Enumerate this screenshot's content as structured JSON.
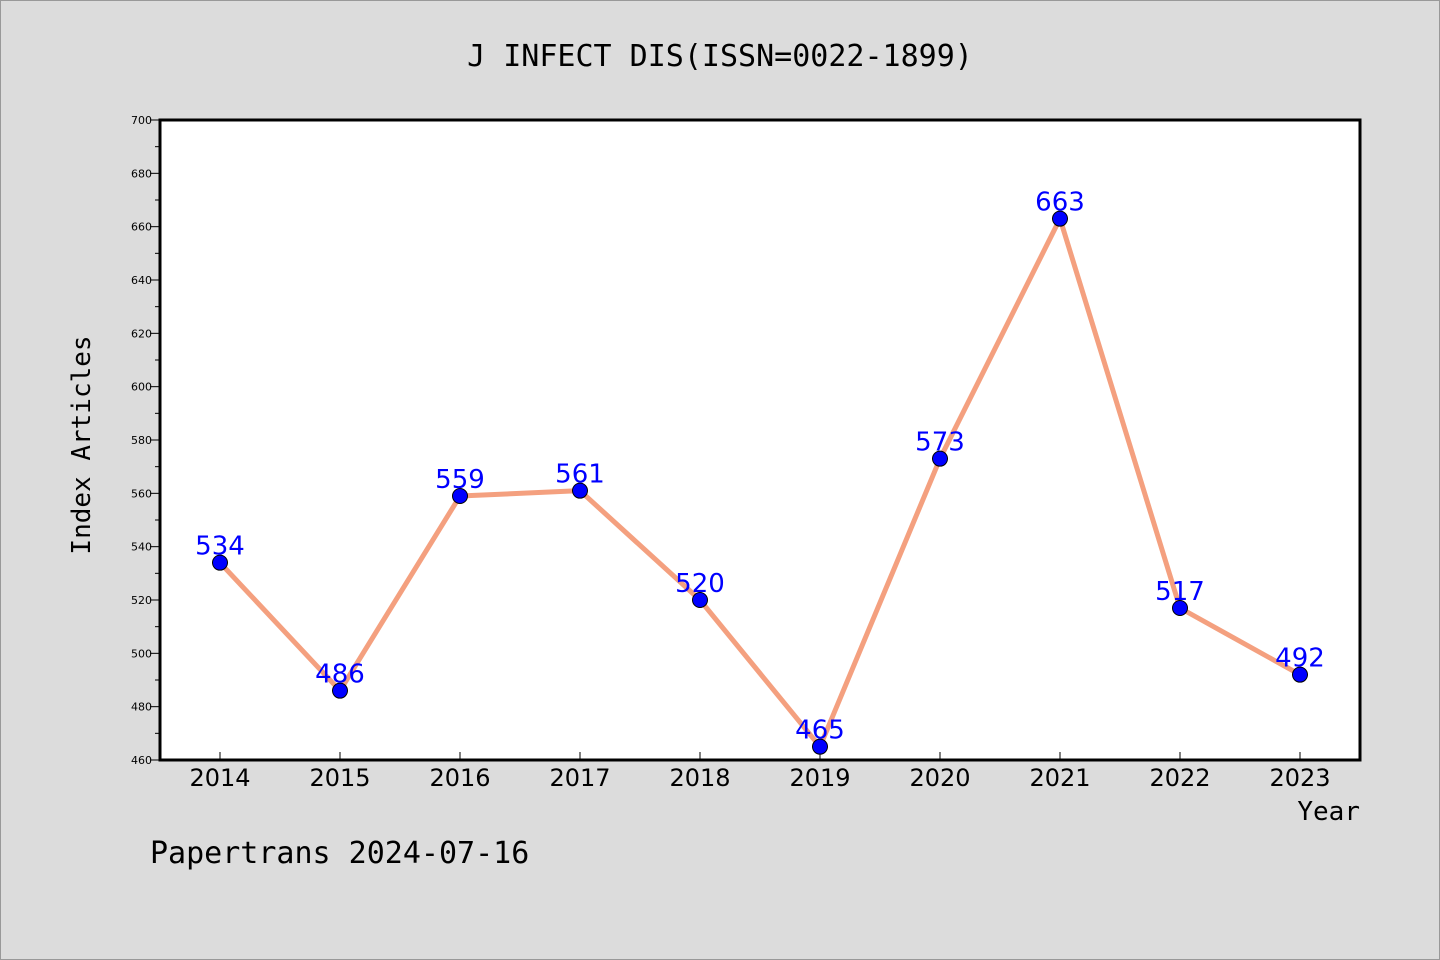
{
  "colors": {
    "background": "#dcdcdc",
    "plot_background": "#ffffff",
    "line": "#f4a07f",
    "marker": "#0000ff",
    "label": "#0000ff",
    "axis": "#000000"
  },
  "footer": "Papertrans 2024-07-16",
  "chart_data": {
    "type": "line",
    "title": "J INFECT DIS(ISSN=0022-1899)",
    "xlabel": "Year",
    "ylabel": "Index Articles",
    "categories": [
      "2014",
      "2015",
      "2016",
      "2017",
      "2018",
      "2019",
      "2020",
      "2021",
      "2022",
      "2023"
    ],
    "series": [
      {
        "values": [
          534,
          486,
          559,
          561,
          520,
          465,
          573,
          663,
          517,
          492
        ],
        "data_labels": [
          "534",
          "486",
          "559",
          "561",
          "520",
          "465",
          "573",
          "663",
          "517",
          "492"
        ]
      }
    ],
    "ylim": [
      460,
      700
    ],
    "yticks": [
      460,
      480,
      500,
      520,
      540,
      560,
      580,
      600,
      620,
      640,
      660,
      680,
      700
    ],
    "grid": false,
    "legend": "none"
  }
}
